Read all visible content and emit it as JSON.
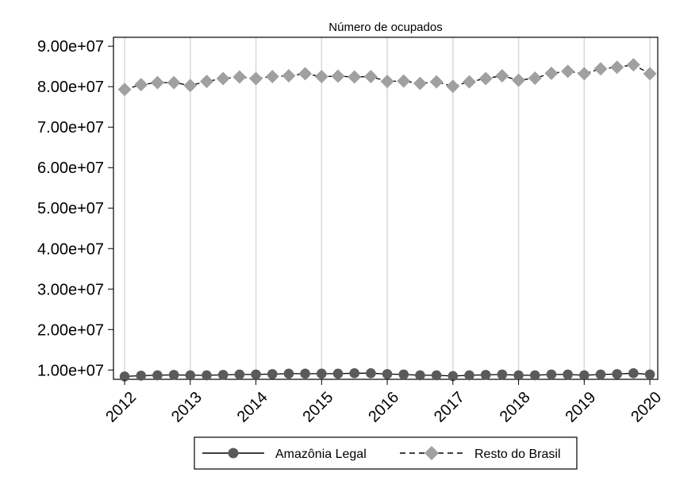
{
  "chart_data": {
    "type": "line",
    "title": "Número de ocupados",
    "xlabel": "",
    "ylabel": "",
    "x": [
      2012.0,
      2012.25,
      2012.5,
      2012.75,
      2013.0,
      2013.25,
      2013.5,
      2013.75,
      2014.0,
      2014.25,
      2014.5,
      2014.75,
      2015.0,
      2015.25,
      2015.5,
      2015.75,
      2016.0,
      2016.25,
      2016.5,
      2016.75,
      2017.0,
      2017.25,
      2017.5,
      2017.75,
      2018.0,
      2018.25,
      2018.5,
      2018.75,
      2019.0,
      2019.25,
      2019.5,
      2019.75,
      2020.0
    ],
    "xticks": [
      2012,
      2013,
      2014,
      2015,
      2016,
      2017,
      2018,
      2019,
      2020
    ],
    "xtick_labels": [
      "2012",
      "2013",
      "2014",
      "2015",
      "2016",
      "2017",
      "2018",
      "2019",
      "2020"
    ],
    "yticks": [
      10000000,
      20000000,
      30000000,
      40000000,
      50000000,
      60000000,
      70000000,
      80000000,
      90000000
    ],
    "ytick_labels": [
      "1.00e+07",
      "2.00e+07",
      "3.00e+07",
      "4.00e+07",
      "5.00e+07",
      "6.00e+07",
      "7.00e+07",
      "8.00e+07",
      "9.00e+07"
    ],
    "ylim": [
      7700000,
      92200000
    ],
    "xlim": [
      2011.83,
      2020.12
    ],
    "grid": "vertical",
    "legend_position": "bottom",
    "series": [
      {
        "name": "Amazônia Legal",
        "color": "#5a5a5a",
        "marker": "circle",
        "line_style": "solid",
        "values": [
          8400000,
          8600000,
          8700000,
          8800000,
          8700000,
          8700000,
          8800000,
          8900000,
          8900000,
          9000000,
          9100000,
          9100000,
          9100000,
          9100000,
          9200000,
          9200000,
          9000000,
          8900000,
          8700000,
          8700000,
          8500000,
          8700000,
          8800000,
          8900000,
          8700000,
          8700000,
          8900000,
          8900000,
          8700000,
          8900000,
          9000000,
          9200000,
          8900000
        ]
      },
      {
        "name": "Resto do Brasil",
        "color": "#a0a0a0",
        "marker": "diamond",
        "line_style": "dashed",
        "values": [
          79300000,
          80500000,
          81000000,
          81000000,
          80300000,
          81300000,
          82000000,
          82400000,
          82000000,
          82500000,
          82700000,
          83200000,
          82500000,
          82600000,
          82400000,
          82500000,
          81300000,
          81400000,
          80800000,
          81200000,
          80100000,
          81200000,
          82000000,
          82700000,
          81600000,
          82100000,
          83300000,
          83800000,
          83200000,
          84400000,
          84800000,
          85400000,
          83200000
        ]
      }
    ]
  }
}
